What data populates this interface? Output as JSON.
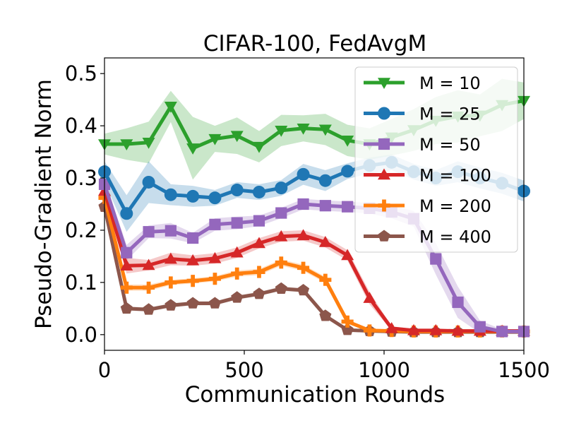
{
  "chart_data": {
    "type": "line",
    "title": "CIFAR-100, FedAvgM",
    "xlabel": "Communication Rounds",
    "ylabel": "Pseudo-Gradient Norm",
    "xlim": [
      0,
      1500
    ],
    "ylim": [
      -0.03,
      0.53
    ],
    "xticks": [
      "0",
      "500",
      "1000",
      "1500"
    ],
    "yticks": [
      "0.0",
      "0.1",
      "0.2",
      "0.3",
      "0.4",
      "0.5"
    ],
    "grid": false,
    "legend_position": "upper-right",
    "x": [
      0,
      79,
      158,
      237,
      316,
      395,
      474,
      553,
      632,
      711,
      790,
      869,
      948,
      1027,
      1106,
      1185,
      1264,
      1343,
      1422,
      1500
    ],
    "series": [
      {
        "name": "M = 10",
        "color": "#2ca02c",
        "marker": "triangle-down",
        "values": [
          0.365,
          0.365,
          0.368,
          0.437,
          0.357,
          0.375,
          0.381,
          0.36,
          0.391,
          0.395,
          0.393,
          0.372,
          0.365,
          0.378,
          0.392,
          0.41,
          0.418,
          0.42,
          0.44,
          0.448
        ],
        "band": [
          0.02,
          0.03,
          0.04,
          0.03,
          0.06,
          0.025,
          0.035,
          0.03,
          0.03,
          0.025,
          0.03,
          0.03,
          0.03,
          0.035,
          0.04,
          0.045,
          0.05,
          0.04,
          0.05,
          0.035
        ]
      },
      {
        "name": "M = 25",
        "color": "#1f77b4",
        "marker": "circle",
        "values": [
          0.312,
          0.232,
          0.292,
          0.268,
          0.265,
          0.262,
          0.277,
          0.273,
          0.281,
          0.307,
          0.295,
          0.313,
          0.324,
          0.33,
          0.312,
          0.3,
          0.312,
          0.3,
          0.29,
          0.275
        ],
        "band": [
          0.02,
          0.035,
          0.04,
          0.02,
          0.02,
          0.015,
          0.015,
          0.015,
          0.015,
          0.02,
          0.02,
          0.015,
          0.015,
          0.015,
          0.015,
          0.015,
          0.02,
          0.02,
          0.02,
          0.02
        ]
      },
      {
        "name": "M = 50",
        "color": "#9467bd",
        "marker": "square",
        "values": [
          0.288,
          0.157,
          0.197,
          0.199,
          0.185,
          0.211,
          0.214,
          0.218,
          0.233,
          0.25,
          0.247,
          0.245,
          0.242,
          0.235,
          0.222,
          0.145,
          0.062,
          0.015,
          0.006,
          0.006
        ],
        "band": [
          0.01,
          0.015,
          0.012,
          0.015,
          0.01,
          0.012,
          0.012,
          0.01,
          0.01,
          0.01,
          0.01,
          0.01,
          0.01,
          0.012,
          0.015,
          0.03,
          0.03,
          0.012,
          0.004,
          0.004
        ]
      },
      {
        "name": "M = 100",
        "color": "#d62728",
        "marker": "triangle-up",
        "values": [
          0.275,
          0.132,
          0.133,
          0.145,
          0.142,
          0.146,
          0.157,
          0.175,
          0.188,
          0.19,
          0.177,
          0.152,
          0.07,
          0.012,
          0.008,
          0.008,
          0.007,
          0.007,
          0.007,
          0.007
        ],
        "band": [
          0.008,
          0.015,
          0.01,
          0.012,
          0.01,
          0.01,
          0.01,
          0.01,
          0.01,
          0.01,
          0.01,
          0.01,
          0.012,
          0.004,
          0.003,
          0.003,
          0.003,
          0.003,
          0.003,
          0.003
        ]
      },
      {
        "name": "M = 200",
        "color": "#ff7f0e",
        "marker": "plus",
        "values": [
          0.262,
          0.09,
          0.09,
          0.1,
          0.103,
          0.107,
          0.117,
          0.12,
          0.138,
          0.128,
          0.105,
          0.025,
          0.008,
          0.007,
          0.006,
          0.006,
          0.006,
          0.006,
          0.006,
          0.006
        ],
        "band": [
          0.006,
          0.006,
          0.006,
          0.005,
          0.005,
          0.005,
          0.006,
          0.006,
          0.006,
          0.006,
          0.006,
          0.004,
          0.003,
          0.002,
          0.002,
          0.002,
          0.002,
          0.002,
          0.002,
          0.002
        ]
      },
      {
        "name": "M = 400",
        "color": "#8c564b",
        "marker": "pentagon",
        "values": [
          0.245,
          0.05,
          0.048,
          0.056,
          0.06,
          0.06,
          0.071,
          0.078,
          0.088,
          0.085,
          0.036,
          0.009,
          0.007,
          0.006,
          0.005,
          0.005,
          0.005,
          0.005,
          0.005,
          0.005
        ],
        "band": [
          0.005,
          0.004,
          0.004,
          0.004,
          0.004,
          0.004,
          0.004,
          0.004,
          0.004,
          0.004,
          0.004,
          0.002,
          0.002,
          0.002,
          0.002,
          0.002,
          0.002,
          0.002,
          0.002,
          0.002
        ]
      }
    ]
  }
}
